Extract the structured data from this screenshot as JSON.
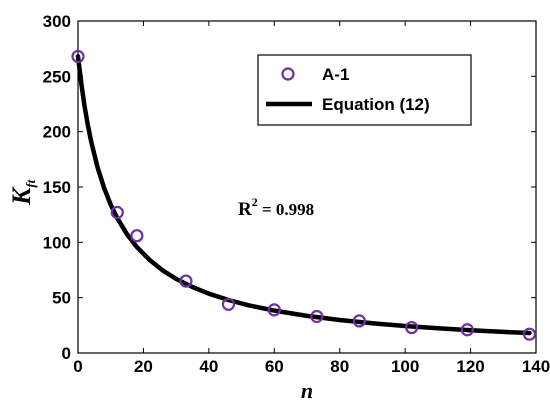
{
  "chart_data": {
    "type": "scatter",
    "title": "",
    "xlabel": "n",
    "ylabel": {
      "main": "K",
      "sub": "ft"
    },
    "xlim": [
      0,
      140
    ],
    "ylim": [
      0,
      300
    ],
    "x_ticks": [
      0,
      20,
      40,
      60,
      80,
      100,
      120,
      140
    ],
    "y_ticks": [
      0,
      50,
      100,
      150,
      200,
      250,
      300
    ],
    "grid": false,
    "legend_position": "top-right",
    "series": [
      {
        "name": "A-1",
        "kind": "markers",
        "marker": "open-circle",
        "color": "#7030A0",
        "x": [
          0,
          12,
          18,
          33,
          46,
          60,
          73,
          86,
          102,
          119,
          138
        ],
        "y": [
          268,
          127,
          106,
          65,
          44,
          39,
          33,
          29,
          23,
          21,
          17
        ]
      },
      {
        "name": "Equation (12)",
        "kind": "line",
        "color": "#000000",
        "x": [
          0,
          1,
          2,
          3,
          4,
          6,
          8,
          10,
          12,
          15,
          18,
          22,
          26,
          30,
          35,
          40,
          46,
          52,
          60,
          70,
          80,
          90,
          100,
          110,
          120,
          130,
          138
        ],
        "y": [
          268,
          243.6,
          223.3,
          206.2,
          191.4,
          167.5,
          148.9,
          134,
          121.8,
          107.2,
          95.7,
          83.8,
          74.4,
          67,
          59.6,
          53.6,
          47.9,
          43.2,
          38.3,
          33.5,
          29.8,
          26.8,
          24.4,
          22.3,
          20.6,
          19.1,
          18.1
        ]
      }
    ],
    "annotations": [
      {
        "base": "R",
        "sup": "2",
        "rest": " = 0.998"
      }
    ]
  }
}
